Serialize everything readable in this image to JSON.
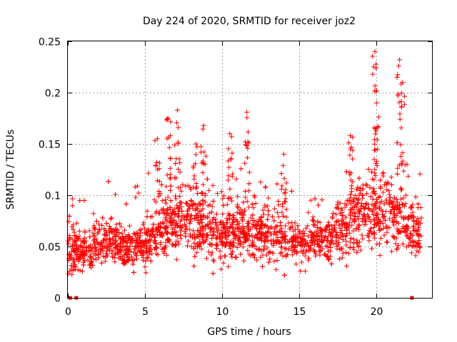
{
  "chart_data": {
    "type": "scatter",
    "title": "Day 224 of 2020, SRMTID for receiver joz2",
    "xlabel": "GPS time / hours",
    "ylabel": "SRMTID / TECUs",
    "xlim": [
      0,
      23.6
    ],
    "ylim": [
      0,
      0.25
    ],
    "grid": true,
    "marker": "+",
    "color": "#ff0000",
    "x_ticks": [
      "0",
      "5",
      "10",
      "15",
      "20"
    ],
    "x_tick_values": [
      0,
      5,
      10,
      15,
      20
    ],
    "y_ticks": [
      "0",
      "0.05",
      "0.1",
      "0.15",
      "0.2",
      "0.25"
    ],
    "y_tick_values": [
      0,
      0.05,
      0.1,
      0.15,
      0.2,
      0.25
    ],
    "zero_markers_x": [
      0.15,
      0.55,
      22.3
    ],
    "series": [
      {
        "name": "SRMTID",
        "profile_hours": [
          0,
          1,
          2,
          3,
          4,
          5,
          6,
          7,
          8,
          9,
          10,
          11,
          12,
          13,
          14,
          15,
          16,
          17,
          18,
          19,
          20,
          21,
          22,
          23
        ],
        "profile_median": [
          0.045,
          0.045,
          0.055,
          0.055,
          0.05,
          0.05,
          0.07,
          0.075,
          0.075,
          0.07,
          0.06,
          0.065,
          0.065,
          0.06,
          0.06,
          0.055,
          0.055,
          0.06,
          0.07,
          0.08,
          0.085,
          0.08,
          0.07,
          0.06
        ],
        "profile_spread": [
          0.015,
          0.015,
          0.015,
          0.015,
          0.013,
          0.015,
          0.02,
          0.022,
          0.022,
          0.02,
          0.018,
          0.018,
          0.018,
          0.018,
          0.018,
          0.015,
          0.015,
          0.018,
          0.022,
          0.025,
          0.025,
          0.025,
          0.02,
          0.017
        ],
        "peaks": [
          {
            "x": 5.8,
            "y": 0.155
          },
          {
            "x": 6.5,
            "y": 0.175
          },
          {
            "x": 7.1,
            "y": 0.183
          },
          {
            "x": 8.3,
            "y": 0.15
          },
          {
            "x": 8.8,
            "y": 0.168
          },
          {
            "x": 10.5,
            "y": 0.16
          },
          {
            "x": 11.6,
            "y": 0.181
          },
          {
            "x": 14.0,
            "y": 0.14
          },
          {
            "x": 18.3,
            "y": 0.158
          },
          {
            "x": 19.9,
            "y": 0.24
          },
          {
            "x": 20.0,
            "y": 0.19
          },
          {
            "x": 21.5,
            "y": 0.232
          },
          {
            "x": 21.7,
            "y": 0.21
          }
        ]
      }
    ]
  }
}
